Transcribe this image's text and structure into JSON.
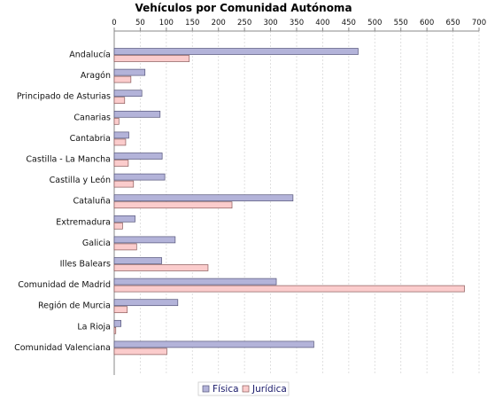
{
  "chart_data": {
    "type": "bar",
    "orientation": "horizontal",
    "title": "Vehículos por Comunidad Autónoma",
    "xlabel": "",
    "ylabel": "",
    "xlim": [
      0,
      700
    ],
    "x_ticks": [
      "0",
      "50",
      "100",
      "150",
      "200",
      "250",
      "300",
      "350",
      "400",
      "450",
      "500",
      "550",
      "600",
      "650",
      "700"
    ],
    "grid": true,
    "legend_position": "bottom",
    "categories": [
      "Andalucía",
      "Aragón",
      "Principado de Asturias",
      "Canarias",
      "Cantabria",
      "Castilla - La Mancha",
      "Castilla y León",
      "Cataluña",
      "Extremadura",
      "Galicia",
      "Illes Balears",
      "Comunidad de Madrid",
      "Región de Murcia",
      "La Rioja",
      "Comunidad Valenciana"
    ],
    "series": [
      {
        "name": "Física",
        "color": "#b3b3d9",
        "values": [
          468,
          59,
          53,
          88,
          28,
          92,
          97,
          343,
          40,
          117,
          91,
          311,
          122,
          13,
          383
        ]
      },
      {
        "name": "Jurídica",
        "color": "#fbcccc",
        "values": [
          144,
          32,
          20,
          9,
          22,
          27,
          37,
          226,
          16,
          43,
          180,
          672,
          25,
          3,
          101
        ]
      }
    ]
  }
}
